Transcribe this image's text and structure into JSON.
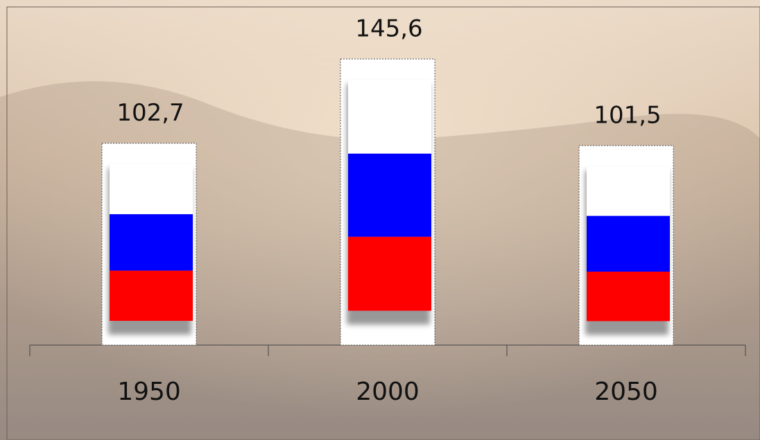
{
  "chart_data": {
    "type": "bar",
    "categories": [
      "1950",
      "2000",
      "2050"
    ],
    "values": [
      102.7,
      145.6,
      101.5
    ],
    "value_labels": [
      "102,7",
      "145,6",
      "101,5"
    ],
    "colors": [
      "#ffffff",
      "#0000ff",
      "#ff0000"
    ]
  }
}
